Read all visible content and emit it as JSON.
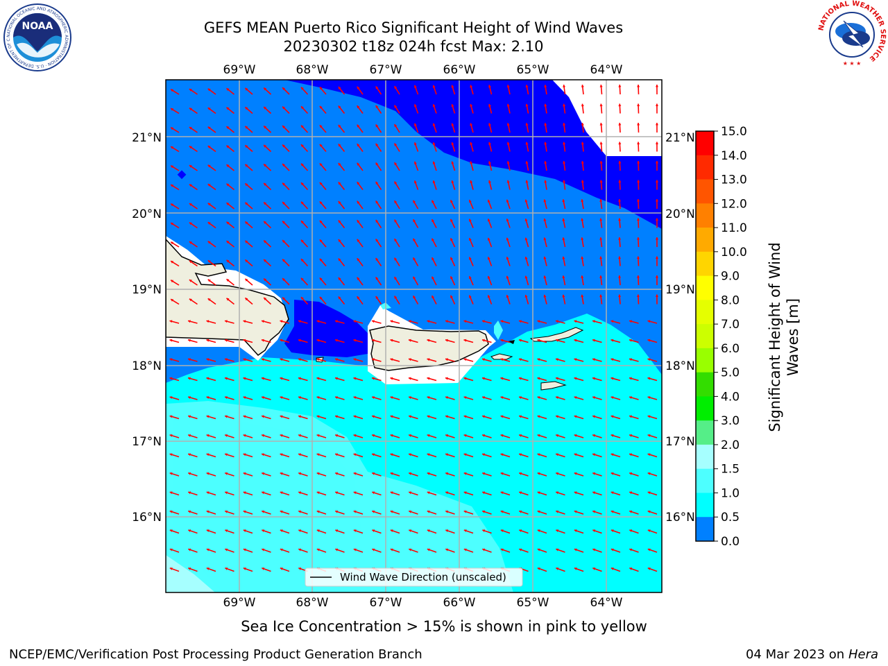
{
  "title": {
    "line1": "GEFS MEAN Puerto Rico Significant Height of Wind Waves",
    "line2": "20230302 t18z 024h fcst   Max: 2.10"
  },
  "logos": {
    "noaa_text": "NOAA",
    "noaa_ring_text": "NATIONAL OCEANIC AND ATMOSPHERIC ADMINISTRATION · U.S. DEPARTMENT OF COMMERCE",
    "nws_ring_text": "NATIONAL WEATHER SERVICE"
  },
  "map": {
    "lon_labels": [
      "69°W",
      "68°W",
      "67°W",
      "66°W",
      "65°W",
      "64°W"
    ],
    "lat_labels": [
      "21°N",
      "20°N",
      "19°N",
      "18°N",
      "17°N",
      "16°N"
    ],
    "legend_label": "Wind Wave Direction (unscaled)",
    "colors": {
      "deep_blue": "#0000ff",
      "blue": "#0080ff",
      "cyan": "#00ffff",
      "light_cyan": "#4dffff",
      "pale_cyan": "#a6ffff",
      "land": "#efefdf",
      "arrow": "#ff0000",
      "grid": "#b0b0b0"
    }
  },
  "colorbar": {
    "label": "Significant Height of Wind Waves [m]",
    "label_line1": "Significant Height of Wind",
    "label_line2": "Waves [m]",
    "ticks": [
      "15.0",
      "14.0",
      "13.0",
      "12.0",
      "11.0",
      "10.0",
      "9.0",
      "8.0",
      "7.0",
      "6.0",
      "5.0",
      "4.0",
      "3.0",
      "2.0",
      "1.5",
      "1.0",
      "0.5",
      "0.0"
    ],
    "colors": [
      "#ff0000",
      "#ff2a00",
      "#ff5500",
      "#ff8000",
      "#ffaa00",
      "#ffd500",
      "#ffff00",
      "#e5ff00",
      "#ccff00",
      "#99ff00",
      "#33dd00",
      "#00ee00",
      "#55ee88",
      "#a6ffff",
      "#4dffff",
      "#00ffff",
      "#0080ff",
      "#0000ff"
    ]
  },
  "notes": {
    "sea_ice": "Sea Ice Concentration > 15% is shown in pink to yellow",
    "producer": "NCEP/EMC/Verification Post Processing Product Generation Branch",
    "date": "04 Mar 2023 on",
    "host": "Hera"
  }
}
